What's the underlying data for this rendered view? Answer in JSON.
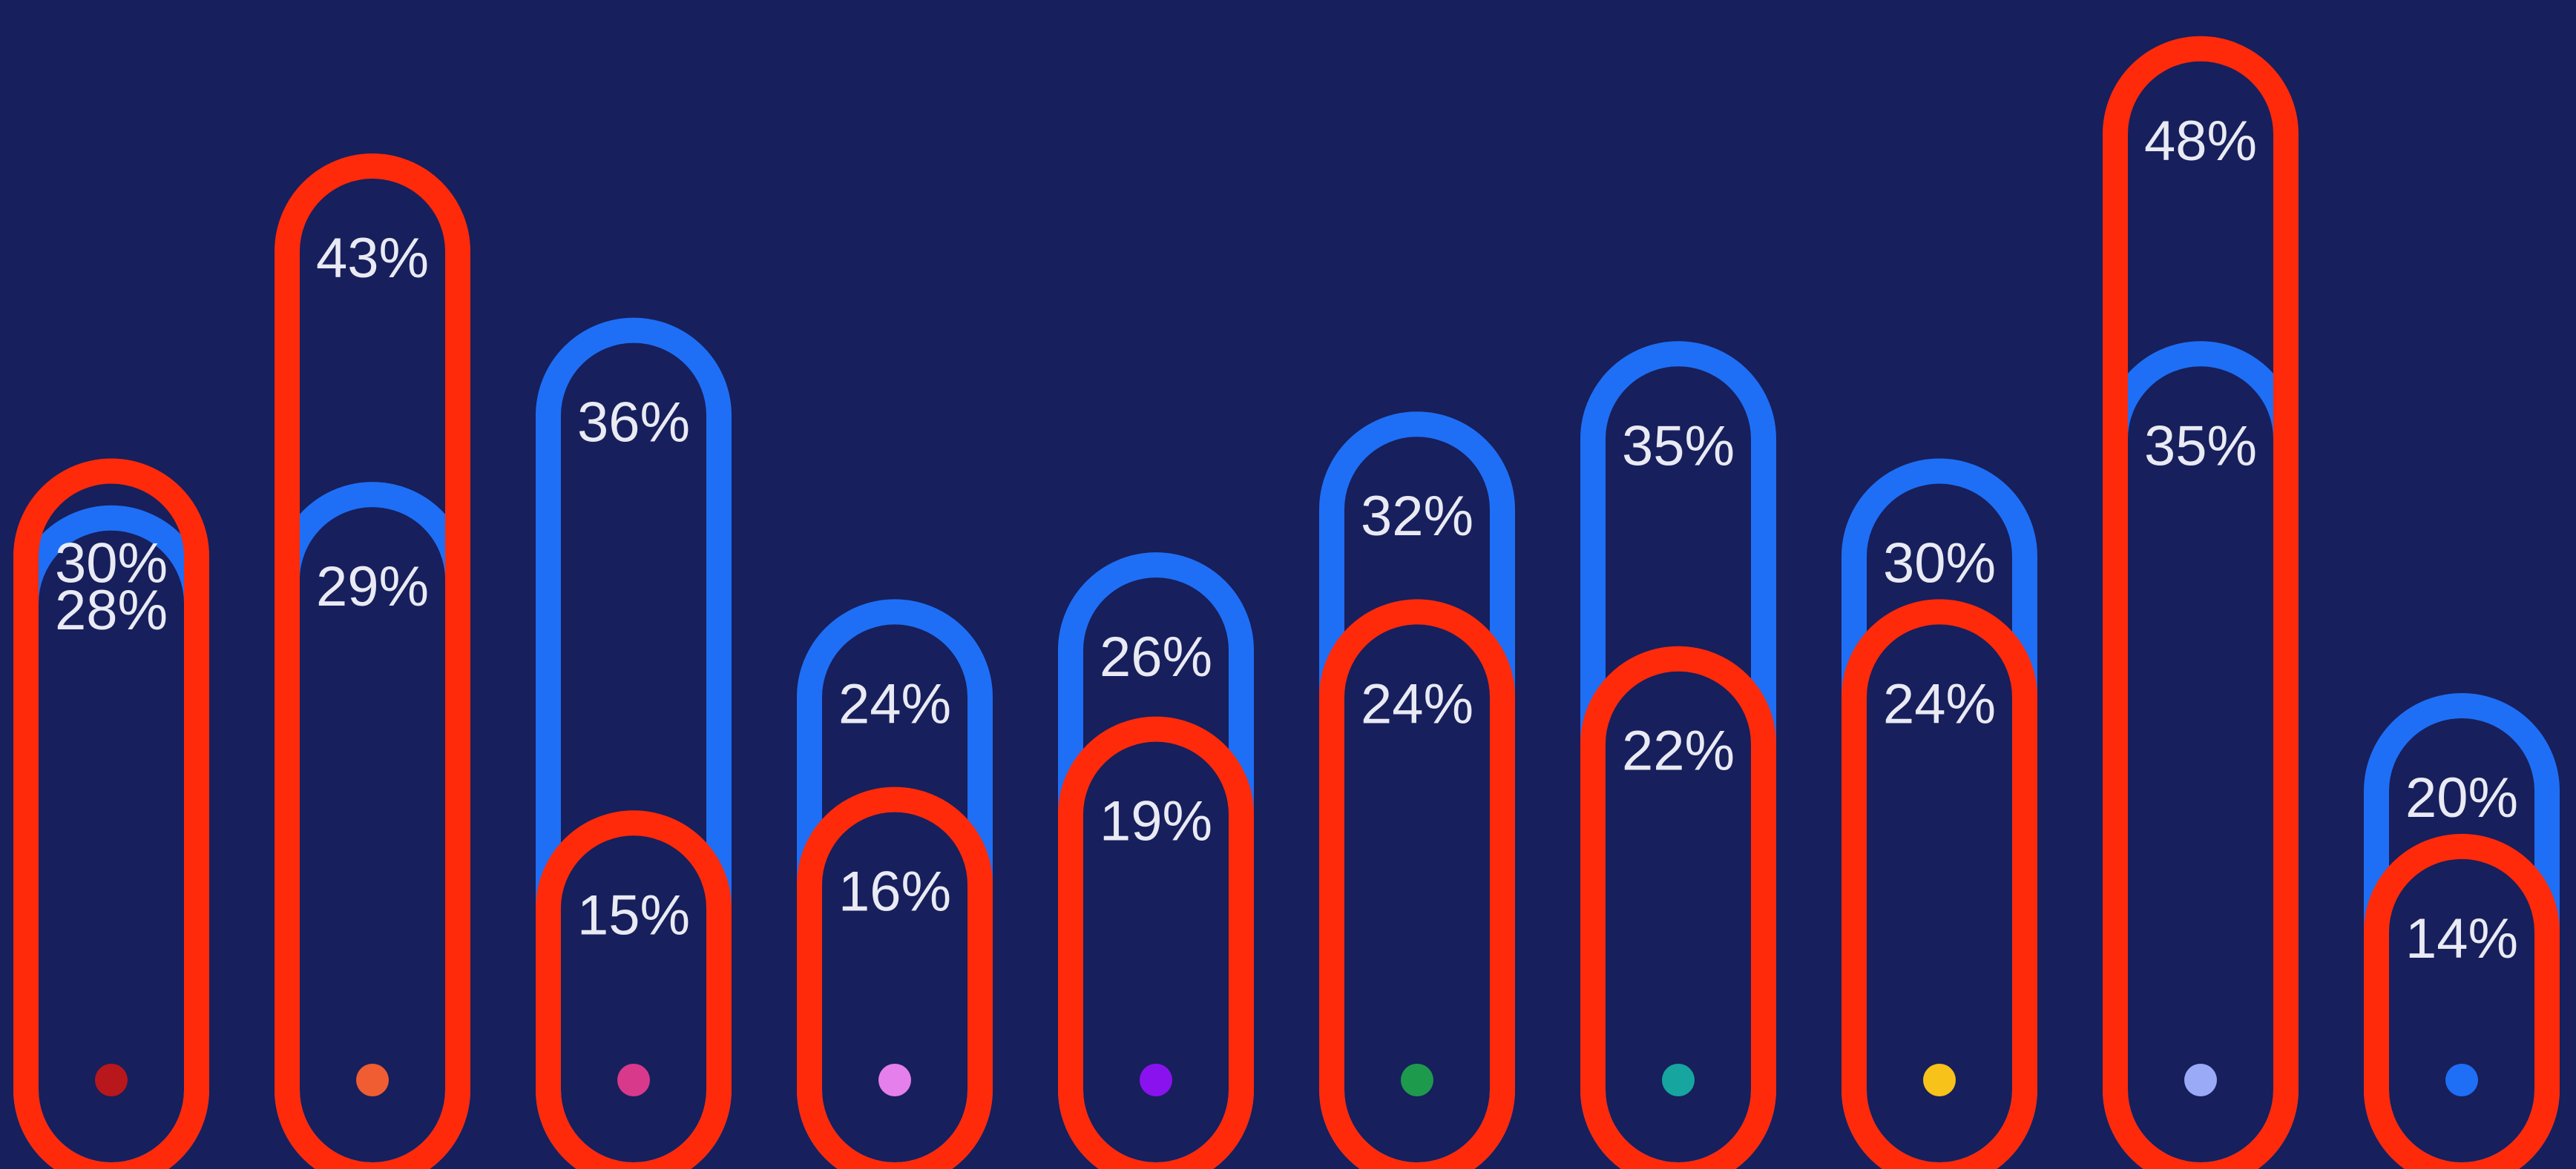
{
  "chart_data": {
    "type": "bar",
    "style": "capsule",
    "title": "",
    "xlabel": "",
    "ylabel": "",
    "ylim": [
      0,
      50
    ],
    "unit": "%",
    "grid": false,
    "legend": "none",
    "series": [
      {
        "color": "#1e6ff5",
        "values": [
          28,
          29,
          36,
          24,
          26,
          32,
          35,
          30,
          35,
          20
        ]
      },
      {
        "color": "#ff2a0a",
        "values": [
          30,
          43,
          15,
          16,
          19,
          24,
          22,
          24,
          48,
          14
        ]
      }
    ],
    "labels": {
      "blue": [
        "28%",
        "29%",
        "36%",
        "24%",
        "26%",
        "32%",
        "35%",
        "30%",
        "35%",
        "20%"
      ],
      "red": [
        "30%",
        "43%",
        "15%",
        "16%",
        "19%",
        "24%",
        "22%",
        "24%",
        "48%",
        "14%"
      ]
    },
    "category_colors": [
      "#b8171c",
      "#f05d32",
      "#d8398a",
      "#e57fec",
      "#8a12ee",
      "#1e9a4d",
      "#16a59f",
      "#f7c21a",
      "#9aaaf6",
      "#1e6ff5"
    ]
  }
}
